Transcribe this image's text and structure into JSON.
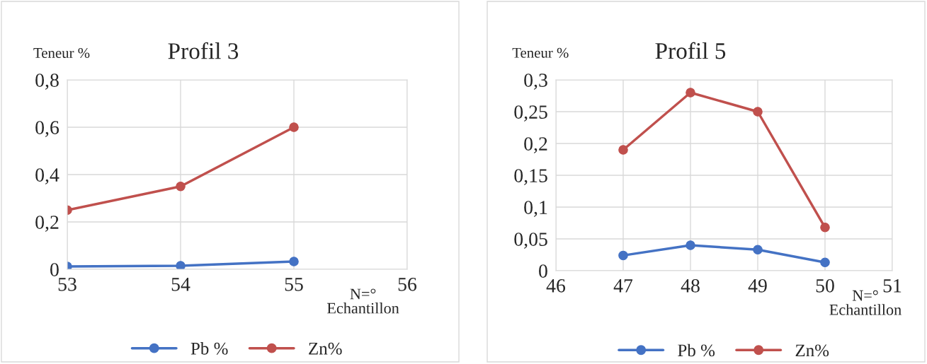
{
  "chart_data": [
    {
      "type": "line",
      "title": "Profil 3",
      "ylabel": "Teneur %",
      "xlabel": "N=°\nEchantillon",
      "x": [
        53,
        54,
        55
      ],
      "series": [
        {
          "name": "Pb %",
          "color": "#4472c4",
          "values": [
            0.012,
            0.015,
            0.033
          ]
        },
        {
          "name": "Zn%",
          "color": "#c0504d",
          "values": [
            0.25,
            0.35,
            0.6
          ]
        }
      ],
      "xlim": [
        53,
        56
      ],
      "xticks": [
        53,
        54,
        55,
        56
      ],
      "ylim": [
        0,
        0.8
      ],
      "yticks": [
        0,
        {
          "value": 0.2,
          "label": "0,2"
        },
        {
          "value": 0.4,
          "label": "0,4"
        },
        {
          "value": 0.6,
          "label": "0,6"
        },
        {
          "value": 0.8,
          "label": "0,8"
        }
      ],
      "grid": true,
      "legend": "bottom",
      "marker": "circle",
      "line_style": "solid"
    },
    {
      "type": "line",
      "title": "Profil 5",
      "ylabel": "Teneur %",
      "xlabel": "N=°\nEchantillon",
      "x": [
        47,
        48,
        49,
        50
      ],
      "series": [
        {
          "name": "Pb %",
          "color": "#4472c4",
          "values": [
            0.024,
            0.04,
            0.033,
            0.013
          ]
        },
        {
          "name": "Zn%",
          "color": "#c0504d",
          "values": [
            0.19,
            0.28,
            0.25,
            0.068
          ]
        }
      ],
      "xlim": [
        46,
        51
      ],
      "xticks": [
        46,
        47,
        48,
        49,
        50,
        51
      ],
      "ylim": [
        0,
        0.3
      ],
      "yticks": [
        0,
        {
          "value": 0.05,
          "label": "0,05"
        },
        {
          "value": 0.1,
          "label": "0,1"
        },
        {
          "value": 0.15,
          "label": "0,15"
        },
        {
          "value": 0.2,
          "label": "0,2"
        },
        {
          "value": 0.25,
          "label": "0,25"
        },
        {
          "value": 0.3,
          "label": "0,3"
        }
      ],
      "grid": true,
      "legend": "bottom",
      "marker": "circle",
      "line_style": "solid"
    }
  ]
}
